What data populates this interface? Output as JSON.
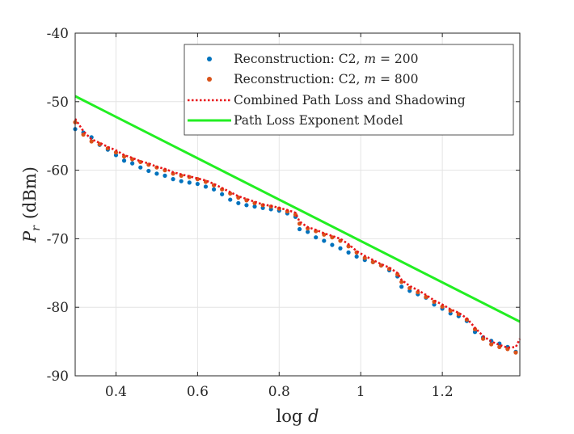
{
  "chart_data": {
    "type": "scatter",
    "title": "",
    "xlabel": "log d",
    "xlabel_var": "d",
    "ylabel_var": "P",
    "ylabel_sub": "r",
    "ylabel_unit": "(dBm)",
    "xlim": [
      0.3,
      1.39
    ],
    "ylim": [
      -90,
      -40
    ],
    "grid": true,
    "legend_position": "top-right",
    "x_ticks": [
      {
        "value": 0.4,
        "label": "0.4"
      },
      {
        "value": 0.6,
        "label": "0.6"
      },
      {
        "value": 0.8,
        "label": "0.8"
      },
      {
        "value": 1.0,
        "label": "1"
      },
      {
        "value": 1.2,
        "label": "1.2"
      }
    ],
    "y_ticks": [
      {
        "value": -40,
        "label": "-40"
      },
      {
        "value": -50,
        "label": "-50"
      },
      {
        "value": -60,
        "label": "-60"
      },
      {
        "value": -70,
        "label": "-70"
      },
      {
        "value": -80,
        "label": "-80"
      },
      {
        "value": -90,
        "label": "-90"
      }
    ],
    "series": [
      {
        "name": "Reconstruction: C2, m = 200",
        "legend_prefix": "Reconstruction: C2, ",
        "legend_var": "m",
        "legend_suffix": " = 200",
        "style": "dots",
        "color": "#0072BD",
        "x": [
          0.3,
          0.32,
          0.34,
          0.36,
          0.38,
          0.4,
          0.42,
          0.44,
          0.46,
          0.48,
          0.5,
          0.52,
          0.54,
          0.56,
          0.58,
          0.6,
          0.62,
          0.64,
          0.66,
          0.68,
          0.7,
          0.72,
          0.74,
          0.76,
          0.78,
          0.8,
          0.82,
          0.84,
          0.85,
          0.87,
          0.89,
          0.91,
          0.93,
          0.95,
          0.97,
          0.99,
          1.01,
          1.03,
          1.05,
          1.07,
          1.09,
          1.1,
          1.12,
          1.14,
          1.16,
          1.18,
          1.2,
          1.22,
          1.24,
          1.26,
          1.28,
          1.3,
          1.32,
          1.34,
          1.36,
          1.38
        ],
        "y": [
          -54.0,
          -54.5,
          -55.2,
          -56.3,
          -57.0,
          -57.8,
          -58.6,
          -59.0,
          -59.6,
          -60.1,
          -60.5,
          -60.8,
          -61.3,
          -61.6,
          -61.8,
          -62.0,
          -62.4,
          -62.8,
          -63.5,
          -64.3,
          -64.8,
          -65.1,
          -65.3,
          -65.5,
          -65.7,
          -65.9,
          -66.3,
          -66.8,
          -68.6,
          -69.0,
          -69.8,
          -70.3,
          -70.9,
          -71.4,
          -72.0,
          -72.6,
          -73.1,
          -73.4,
          -73.9,
          -74.6,
          -75.5,
          -77.0,
          -77.6,
          -78.1,
          -78.6,
          -79.6,
          -80.2,
          -80.9,
          -81.3,
          -82.0,
          -83.6,
          -84.4,
          -84.9,
          -85.3,
          -85.8,
          -86.5
        ]
      },
      {
        "name": "Reconstruction: C2, m = 800",
        "legend_prefix": "Reconstruction: C2, ",
        "legend_var": "m",
        "legend_suffix": " = 800",
        "style": "dots",
        "color": "#D95319",
        "x": [
          0.3,
          0.32,
          0.34,
          0.36,
          0.38,
          0.4,
          0.42,
          0.44,
          0.46,
          0.48,
          0.5,
          0.52,
          0.54,
          0.56,
          0.58,
          0.6,
          0.62,
          0.64,
          0.66,
          0.68,
          0.7,
          0.72,
          0.74,
          0.76,
          0.78,
          0.8,
          0.82,
          0.84,
          0.85,
          0.87,
          0.89,
          0.91,
          0.93,
          0.95,
          0.97,
          0.99,
          1.01,
          1.03,
          1.05,
          1.07,
          1.09,
          1.1,
          1.12,
          1.14,
          1.16,
          1.18,
          1.2,
          1.22,
          1.24,
          1.26,
          1.28,
          1.3,
          1.32,
          1.34,
          1.36,
          1.38
        ],
        "y": [
          -53.0,
          -54.8,
          -55.8,
          -56.2,
          -56.8,
          -57.4,
          -58.0,
          -58.4,
          -58.8,
          -59.2,
          -59.6,
          -60.0,
          -60.5,
          -60.8,
          -61.0,
          -61.3,
          -61.7,
          -62.2,
          -62.8,
          -63.4,
          -64.0,
          -64.4,
          -64.8,
          -65.1,
          -65.3,
          -65.6,
          -66.0,
          -66.5,
          -67.8,
          -68.5,
          -68.9,
          -69.4,
          -69.8,
          -70.3,
          -71.1,
          -72.0,
          -72.8,
          -73.4,
          -73.9,
          -74.4,
          -75.2,
          -76.3,
          -77.2,
          -77.8,
          -78.5,
          -79.2,
          -79.9,
          -80.5,
          -81.0,
          -81.8,
          -83.2,
          -84.6,
          -85.4,
          -85.8,
          -86.1,
          -86.6
        ]
      },
      {
        "name": "Combined Path Loss and Shadowing",
        "style": "dotted-line",
        "color": "#E8161A",
        "x": [
          0.3,
          0.32,
          0.34,
          0.36,
          0.38,
          0.4,
          0.42,
          0.44,
          0.46,
          0.48,
          0.5,
          0.52,
          0.54,
          0.56,
          0.58,
          0.6,
          0.62,
          0.64,
          0.66,
          0.68,
          0.7,
          0.72,
          0.74,
          0.76,
          0.78,
          0.8,
          0.82,
          0.84,
          0.85,
          0.87,
          0.89,
          0.91,
          0.93,
          0.95,
          0.97,
          0.99,
          1.01,
          1.03,
          1.05,
          1.07,
          1.09,
          1.1,
          1.12,
          1.14,
          1.16,
          1.18,
          1.2,
          1.22,
          1.24,
          1.26,
          1.28,
          1.3,
          1.32,
          1.34,
          1.36,
          1.38,
          1.39
        ],
        "y": [
          -52.5,
          -54.3,
          -55.5,
          -56.0,
          -56.6,
          -57.1,
          -57.8,
          -58.2,
          -58.7,
          -59.0,
          -59.5,
          -59.8,
          -60.3,
          -60.6,
          -60.9,
          -61.2,
          -61.5,
          -62.0,
          -62.6,
          -63.2,
          -63.8,
          -64.2,
          -64.6,
          -65.0,
          -65.2,
          -65.5,
          -65.8,
          -66.2,
          -67.5,
          -68.3,
          -68.7,
          -69.2,
          -69.6,
          -70.0,
          -70.8,
          -71.8,
          -72.5,
          -73.1,
          -73.7,
          -74.2,
          -75.0,
          -76.0,
          -76.9,
          -77.5,
          -78.2,
          -79.0,
          -79.6,
          -80.3,
          -80.8,
          -81.6,
          -83.0,
          -84.2,
          -85.0,
          -85.5,
          -85.9,
          -85.8,
          -84.6
        ]
      },
      {
        "name": "Path Loss Exponent Model",
        "style": "solid-line",
        "color": "#22EE22",
        "x": [
          0.3,
          1.39
        ],
        "y": [
          -49.2,
          -82.1
        ]
      }
    ]
  }
}
